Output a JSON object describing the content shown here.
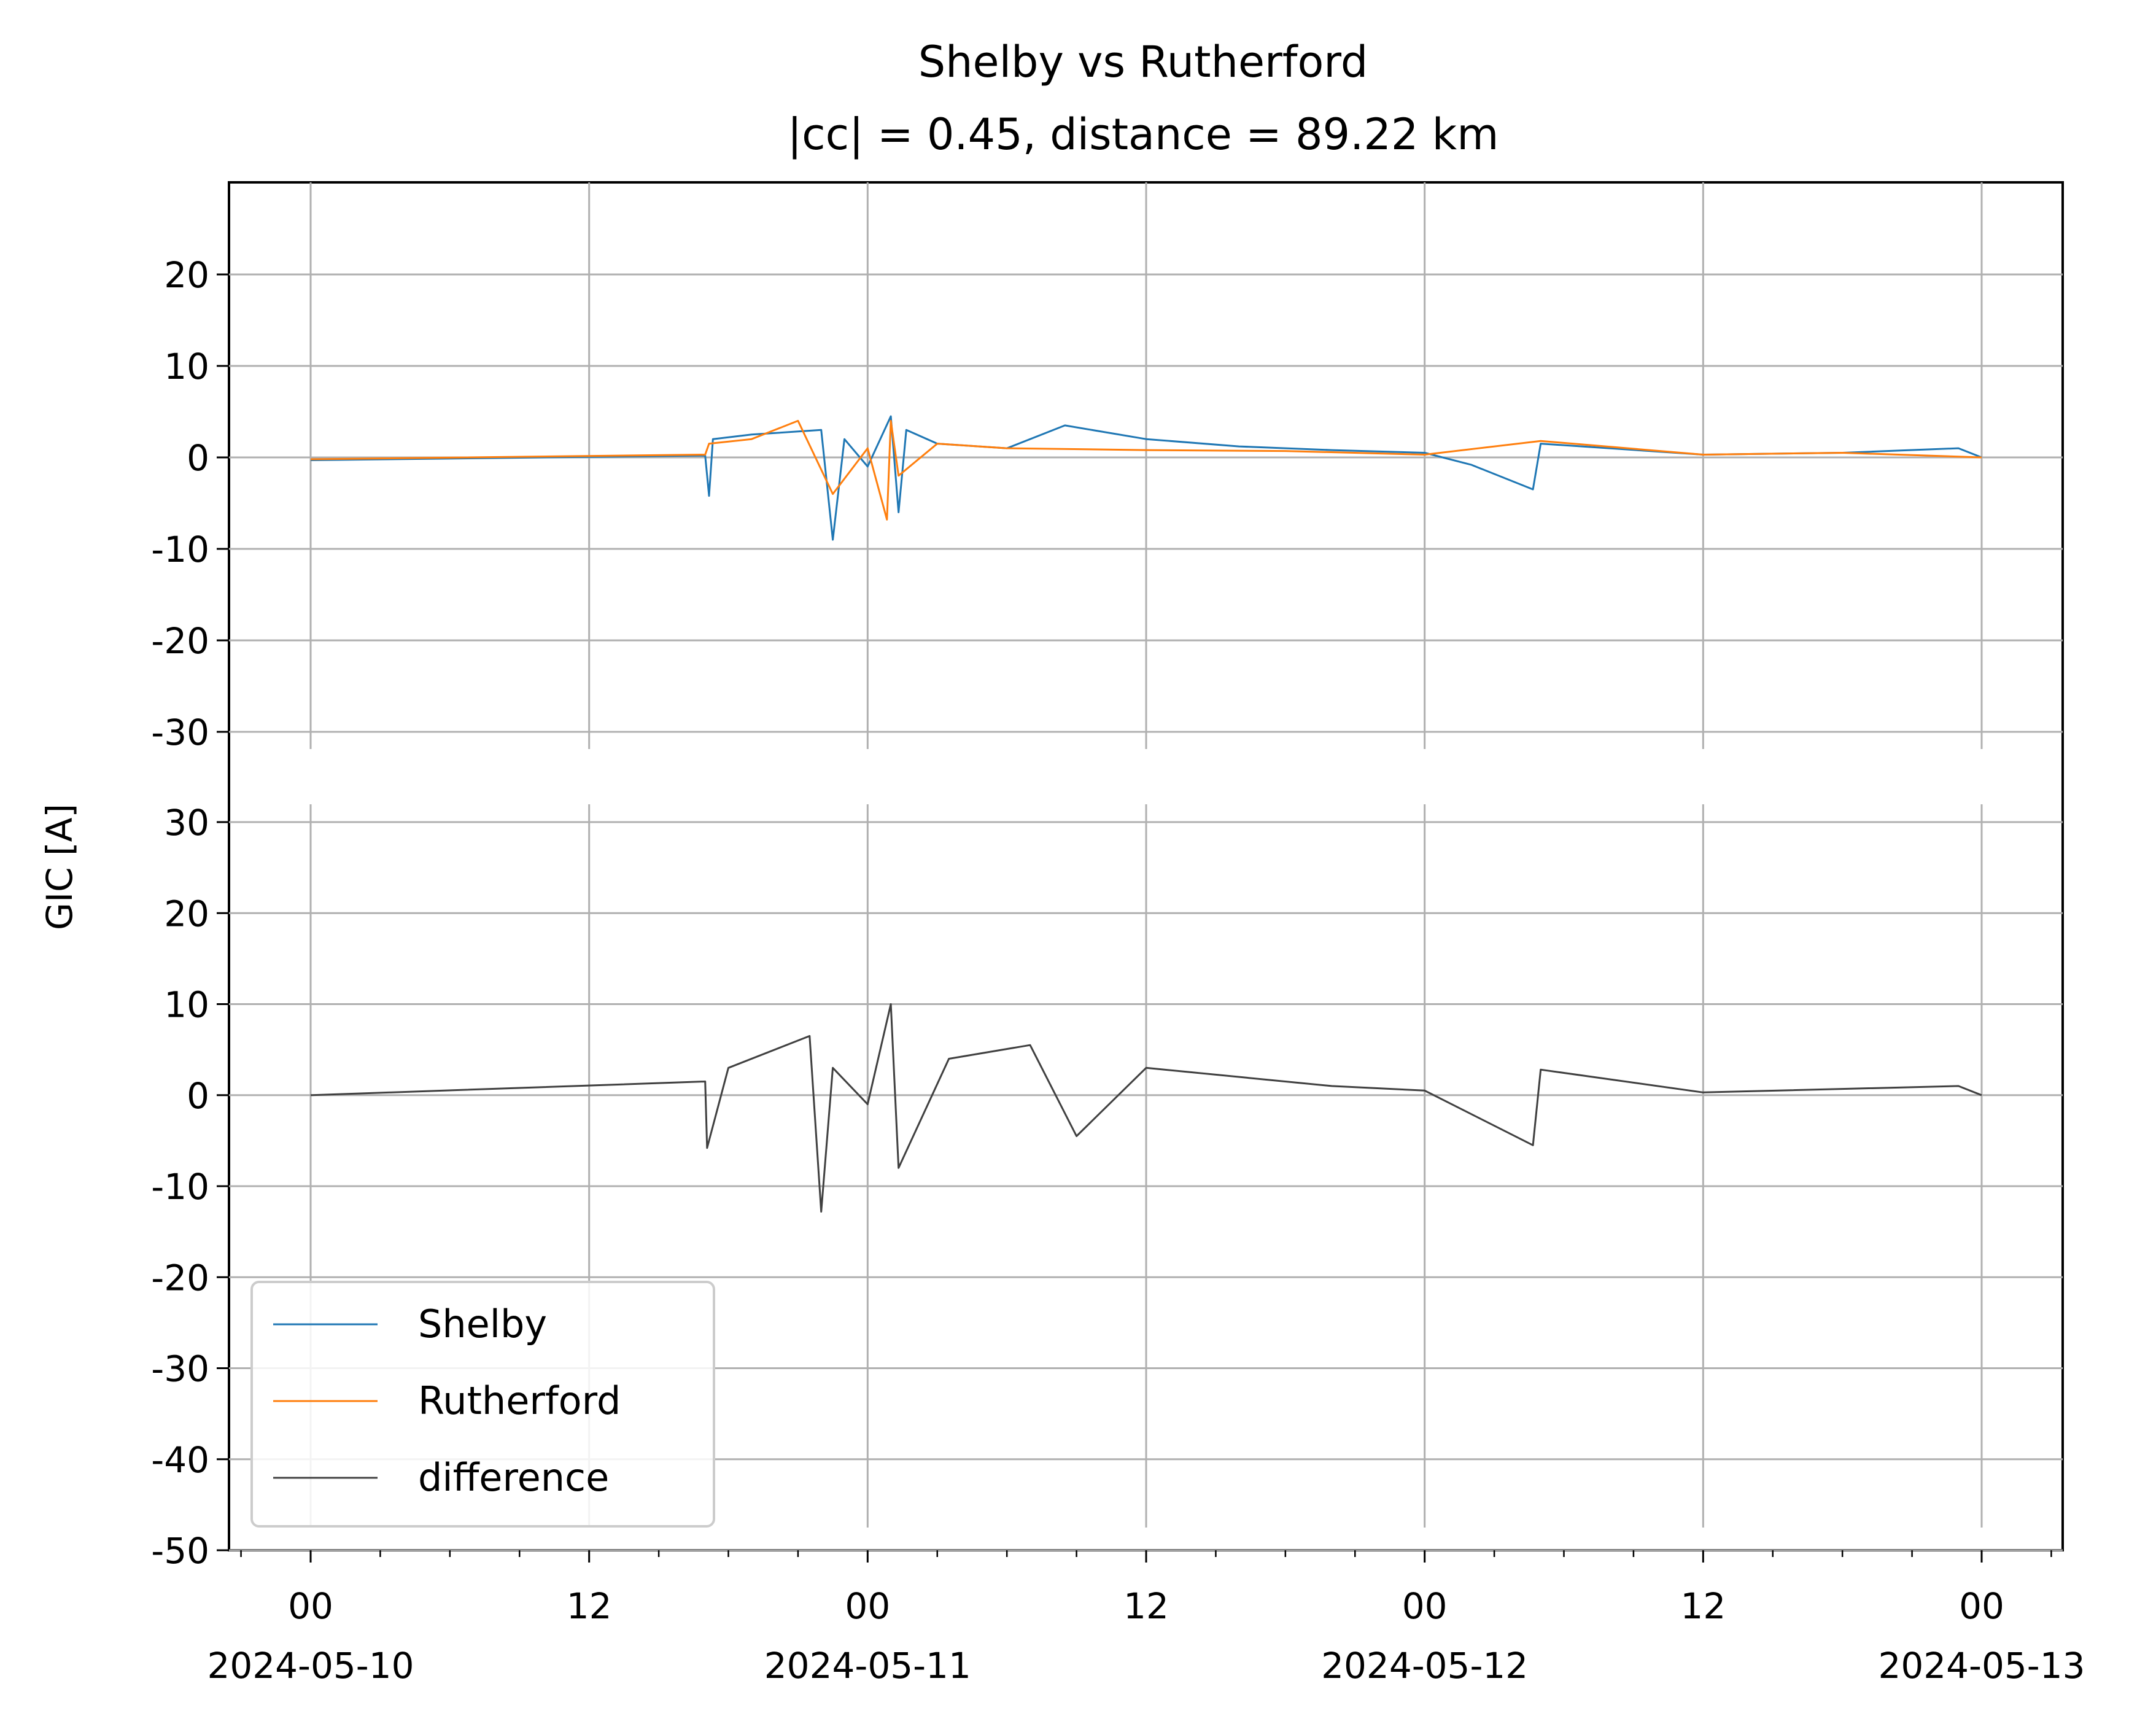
{
  "chart_data": {
    "type": "line",
    "title": "Shelby vs Rutherford",
    "subtitle": "|cc| = 0.45, distance = 89.22 km",
    "ylabel": "GIC [A]",
    "x_range": [
      "2024-05-10T00:00",
      "2024-05-13T00:00"
    ],
    "x_ticks": [
      {
        "time": "00",
        "date": "2024-05-10"
      },
      {
        "time": "12",
        "date": ""
      },
      {
        "time": "00",
        "date": "2024-05-11"
      },
      {
        "time": "12",
        "date": ""
      },
      {
        "time": "00",
        "date": "2024-05-12"
      },
      {
        "time": "12",
        "date": ""
      },
      {
        "time": "00",
        "date": "2024-05-13"
      }
    ],
    "grid": true,
    "legend_placement": "lower-left",
    "panels": [
      {
        "name": "top",
        "ylim": [
          -30,
          30
        ],
        "yticks": [
          "20",
          "10",
          "0",
          "-10",
          "-20",
          "-30"
        ],
        "series": [
          {
            "name": "Shelby",
            "color": "#1f77b4",
            "x": [
              "2024-05-10T00:00",
              "2024-05-10T17:00",
              "2024-05-10T17:10",
              "2024-05-10T17:20",
              "2024-05-10T19:00",
              "2024-05-10T22:00",
              "2024-05-10T22:30",
              "2024-05-10T23:00",
              "2024-05-11T00:00",
              "2024-05-11T01:00",
              "2024-05-11T01:20",
              "2024-05-11T01:40",
              "2024-05-11T03:00",
              "2024-05-11T06:00",
              "2024-05-11T08:30",
              "2024-05-11T12:00",
              "2024-05-11T16:00",
              "2024-05-11T20:00",
              "2024-05-12T00:00",
              "2024-05-12T02:00",
              "2024-05-12T04:40",
              "2024-05-12T05:00",
              "2024-05-12T12:00",
              "2024-05-12T18:00",
              "2024-05-12T23:00",
              "2024-05-13T00:00"
            ],
            "y": [
              -0.3,
              0.2,
              -4.2,
              2.0,
              2.5,
              3.0,
              -9.0,
              2.0,
              -1.0,
              4.5,
              -6.0,
              3.0,
              1.5,
              1.0,
              3.5,
              2.0,
              1.2,
              0.8,
              0.5,
              -0.8,
              -3.5,
              1.5,
              0.3,
              0.5,
              1.0,
              0.0
            ]
          },
          {
            "name": "Rutherford",
            "color": "#ff7f0e",
            "x": [
              "2024-05-10T00:00",
              "2024-05-10T17:00",
              "2024-05-10T17:10",
              "2024-05-10T19:00",
              "2024-05-10T21:00",
              "2024-05-10T22:30",
              "2024-05-11T00:00",
              "2024-05-11T00:50",
              "2024-05-11T01:00",
              "2024-05-11T01:20",
              "2024-05-11T03:00",
              "2024-05-11T06:00",
              "2024-05-11T12:00",
              "2024-05-11T18:00",
              "2024-05-12T00:00",
              "2024-05-12T05:00",
              "2024-05-12T12:00",
              "2024-05-12T18:00",
              "2024-05-13T00:00"
            ],
            "y": [
              -0.2,
              0.3,
              1.5,
              2.0,
              4.0,
              -4.0,
              1.0,
              -6.8,
              4.0,
              -2.0,
              1.5,
              1.0,
              0.8,
              0.7,
              0.3,
              1.8,
              0.3,
              0.5,
              0.0
            ]
          }
        ]
      },
      {
        "name": "bottom",
        "ylim": [
          -50,
          32
        ],
        "yticks": [
          "30",
          "20",
          "10",
          "0",
          "-10",
          "-20",
          "-30",
          "-40",
          "-50"
        ],
        "series": [
          {
            "name": "difference",
            "color": "#404040",
            "x": [
              "2024-05-10T00:00",
              "2024-05-10T17:00",
              "2024-05-10T17:05",
              "2024-05-10T18:00",
              "2024-05-10T21:30",
              "2024-05-10T22:00",
              "2024-05-10T22:30",
              "2024-05-11T00:00",
              "2024-05-11T01:00",
              "2024-05-11T01:20",
              "2024-05-11T03:30",
              "2024-05-11T07:00",
              "2024-05-11T09:00",
              "2024-05-11T12:00",
              "2024-05-11T20:00",
              "2024-05-12T00:00",
              "2024-05-12T04:40",
              "2024-05-12T05:00",
              "2024-05-12T12:00",
              "2024-05-12T23:00",
              "2024-05-13T00:00"
            ],
            "y": [
              0.0,
              1.5,
              -5.8,
              3.0,
              6.5,
              -12.8,
              3.0,
              -1.0,
              10.0,
              -8.0,
              4.0,
              5.5,
              -4.5,
              3.0,
              1.0,
              0.5,
              -5.5,
              2.8,
              0.3,
              1.0,
              0.0
            ]
          }
        ]
      }
    ]
  }
}
